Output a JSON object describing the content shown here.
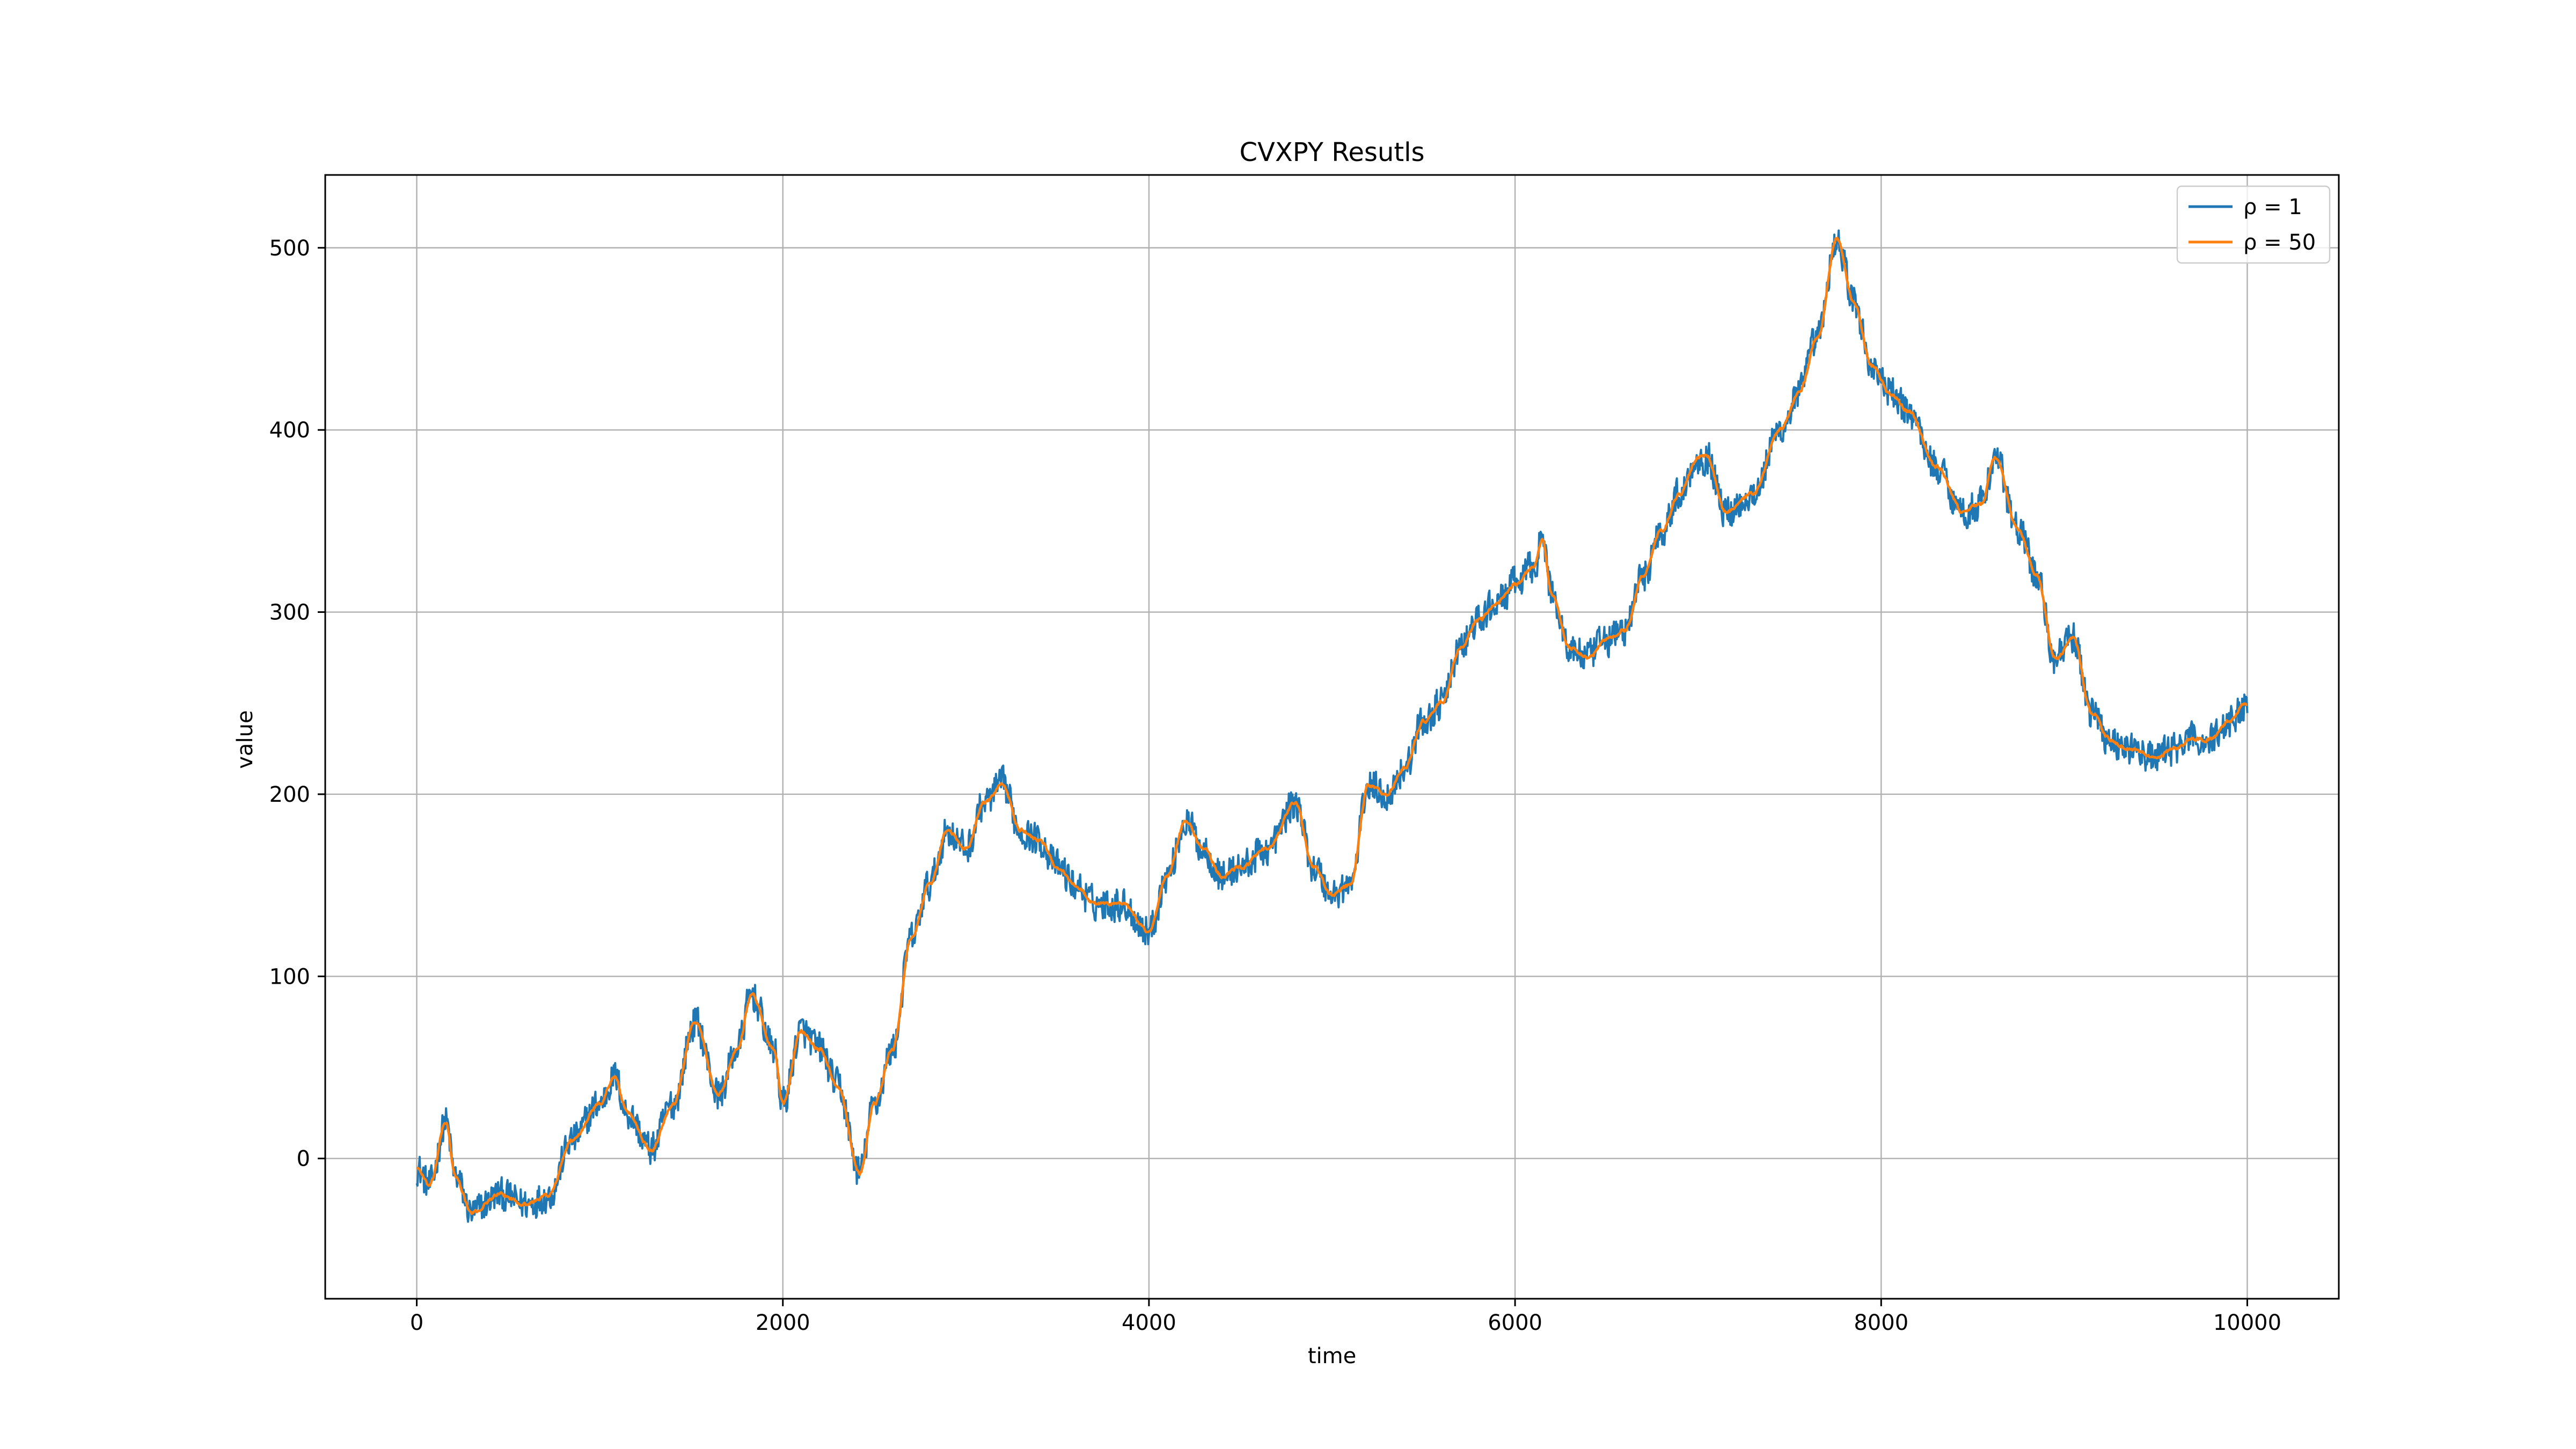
{
  "chart_data": {
    "type": "line",
    "title": "CVXPY Resutls",
    "xlabel": "time",
    "ylabel": "value",
    "xlim": [
      -500,
      10500
    ],
    "ylim": [
      -77,
      540
    ],
    "xticks": [
      0,
      2000,
      4000,
      6000,
      8000,
      10000
    ],
    "xtick_labels": [
      "0",
      "2000",
      "4000",
      "6000",
      "8000",
      "10000"
    ],
    "yticks": [
      0,
      100,
      200,
      300,
      400,
      500
    ],
    "ytick_labels": [
      "0",
      "100",
      "200",
      "300",
      "400",
      "500"
    ],
    "grid": true,
    "legend_position": "top-right",
    "series": [
      {
        "name": "ρ = 1",
        "color": "#1f77b4",
        "noise_amplitude": 10
      },
      {
        "name": "ρ = 50",
        "color": "#ff7f0e",
        "noise_amplitude": 2
      }
    ],
    "anchor_x": [
      0,
      70,
      160,
      210,
      300,
      450,
      600,
      720,
      850,
      1000,
      1080,
      1150,
      1280,
      1400,
      1520,
      1650,
      1750,
      1830,
      1950,
      2000,
      2100,
      2200,
      2300,
      2420,
      2500,
      2600,
      2700,
      2800,
      2900,
      3000,
      3100,
      3200,
      3300,
      3400,
      3500,
      3600,
      3700,
      3850,
      4000,
      4100,
      4200,
      4300,
      4400,
      4500,
      4650,
      4800,
      4900,
      5000,
      5100,
      5200,
      5300,
      5400,
      5500,
      5600,
      5700,
      5800,
      5900,
      6000,
      6100,
      6150,
      6200,
      6300,
      6400,
      6500,
      6600,
      6700,
      6800,
      6900,
      7000,
      7050,
      7150,
      7300,
      7450,
      7550,
      7650,
      7760,
      7850,
      7950,
      8050,
      8150,
      8300,
      8450,
      8550,
      8620,
      8750,
      8850,
      8950,
      9050,
      9150,
      9250,
      9350,
      9500,
      9600,
      9700,
      9800,
      9900,
      10000
    ],
    "anchor_y": [
      -5,
      -15,
      20,
      -10,
      -30,
      -20,
      -25,
      -20,
      10,
      30,
      45,
      25,
      5,
      30,
      75,
      35,
      60,
      90,
      60,
      30,
      70,
      60,
      40,
      -8,
      30,
      60,
      120,
      150,
      180,
      170,
      195,
      205,
      180,
      175,
      160,
      150,
      140,
      140,
      125,
      155,
      185,
      170,
      155,
      160,
      170,
      195,
      160,
      145,
      150,
      205,
      200,
      215,
      240,
      250,
      280,
      295,
      305,
      315,
      325,
      340,
      310,
      280,
      275,
      285,
      290,
      320,
      345,
      365,
      385,
      385,
      355,
      365,
      400,
      420,
      450,
      505,
      470,
      435,
      420,
      410,
      380,
      355,
      360,
      385,
      345,
      320,
      275,
      285,
      245,
      230,
      225,
      220,
      225,
      230,
      230,
      240,
      250
    ]
  }
}
